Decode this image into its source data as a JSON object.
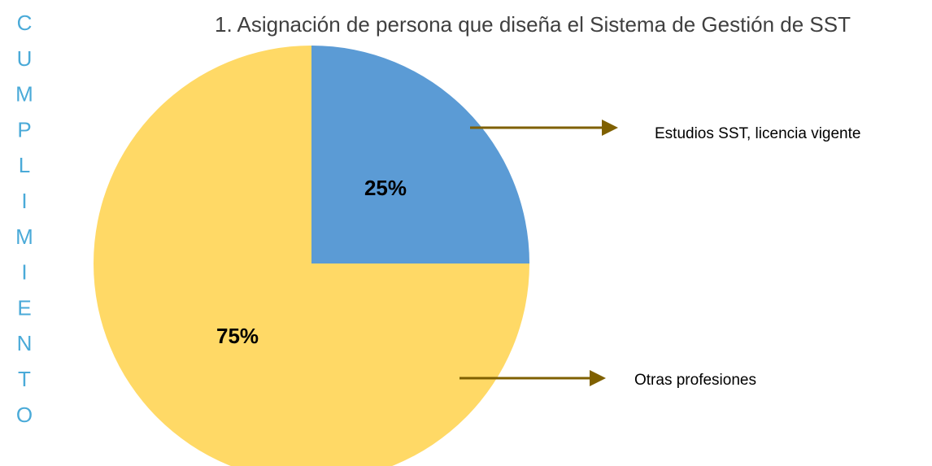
{
  "chart_data": {
    "type": "pie",
    "title": "1. Asignación de persona que diseña el Sistema de Gestión de SST",
    "side_label": "CUMPLIMIENTO",
    "categories": [
      "Estudios SST, licencia vigente",
      "Otras profesiones"
    ],
    "values": [
      25,
      75
    ],
    "value_labels": [
      "25%",
      "75%"
    ],
    "colors": [
      "#5b9bd5",
      "#ffd966"
    ]
  }
}
